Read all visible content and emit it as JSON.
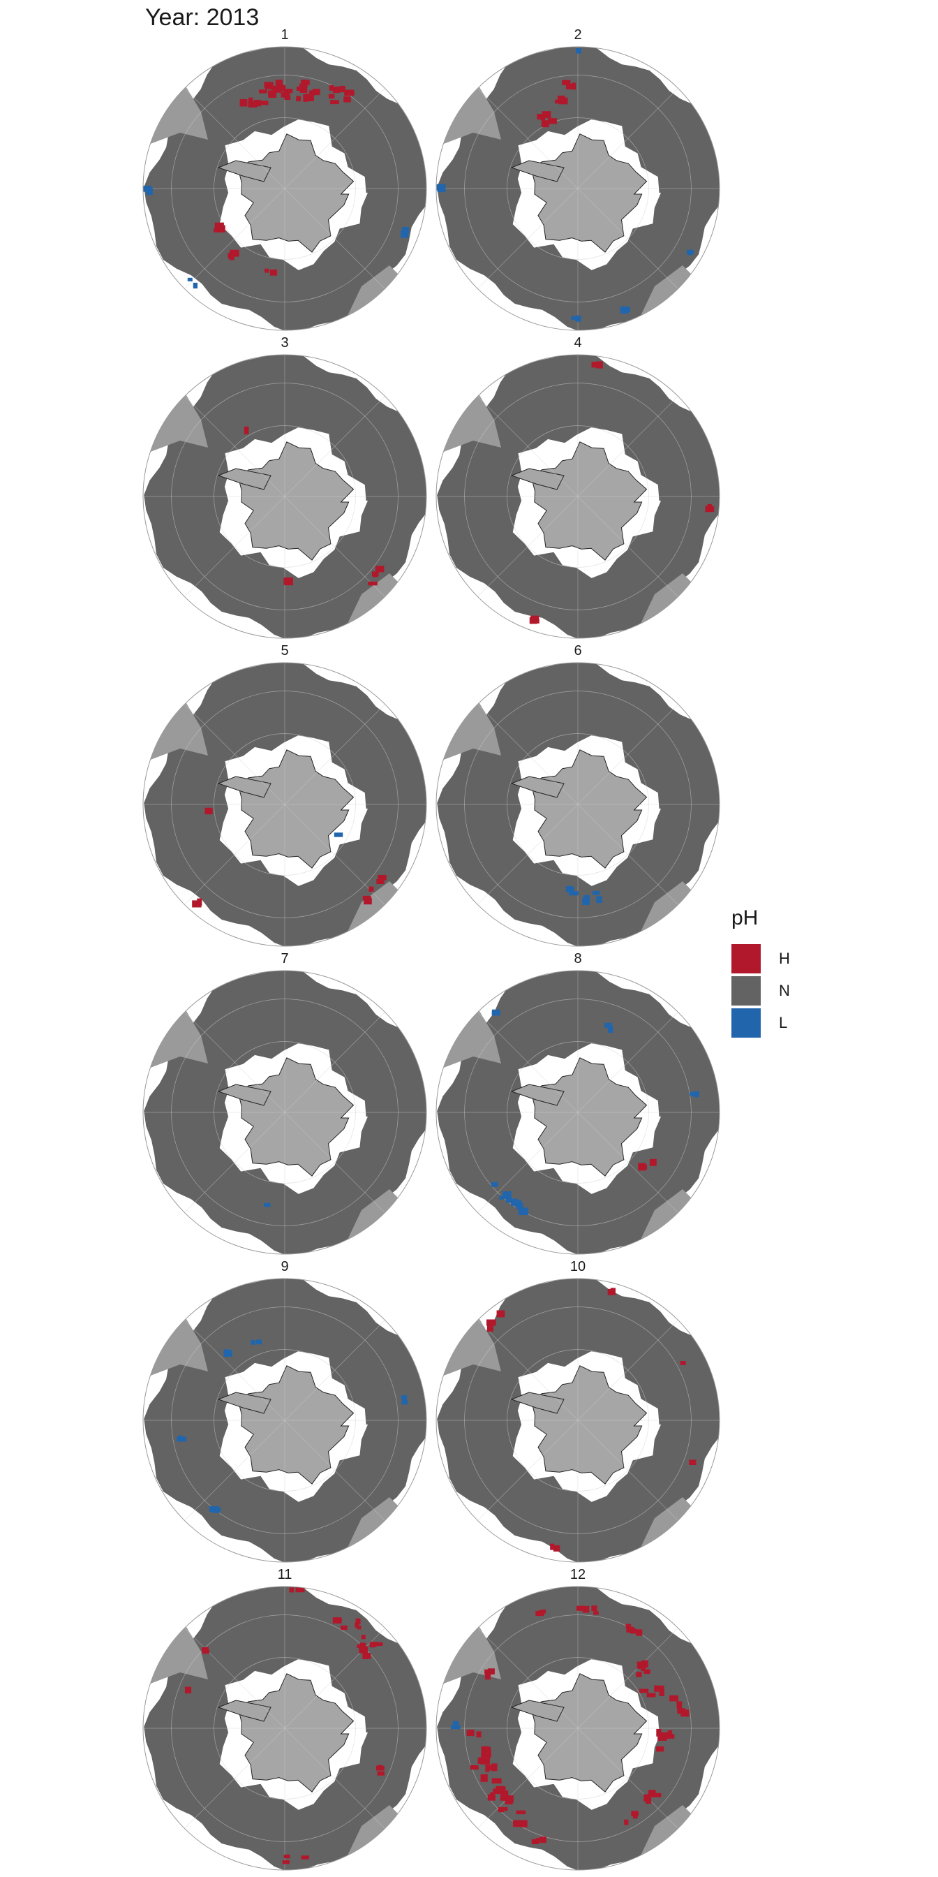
{
  "title": "Year: 2013",
  "legend": {
    "title": "pH",
    "items": [
      {
        "label": "H",
        "color": "#b2182b"
      },
      {
        "label": "N",
        "color": "#636363"
      },
      {
        "label": "L",
        "color": "#2166ac"
      }
    ]
  },
  "colors": {
    "ocean": "#636363",
    "antarctica": "#a6a6a6",
    "landmass": "#9a9a9a",
    "outside": "#ffffff",
    "high": "#b2182b",
    "low": "#2166ac"
  },
  "panels": [
    {
      "label": "1"
    },
    {
      "label": "2"
    },
    {
      "label": "3"
    },
    {
      "label": "4"
    },
    {
      "label": "5"
    },
    {
      "label": "6"
    },
    {
      "label": "7"
    },
    {
      "label": "8"
    },
    {
      "label": "9"
    },
    {
      "label": "10"
    },
    {
      "label": "11"
    },
    {
      "label": "12"
    }
  ]
}
